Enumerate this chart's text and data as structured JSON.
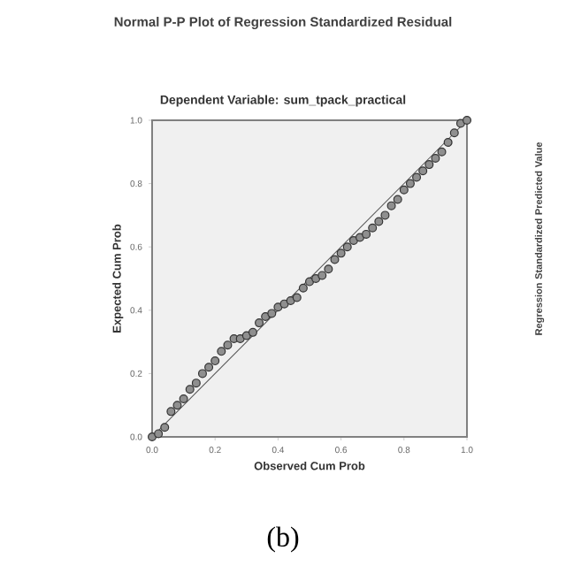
{
  "chart_data": {
    "type": "scatter",
    "title": "Normal P-P Plot of Regression Standardized Residual",
    "subtitle": "Dependent Variable: sum_tpack_practical",
    "xlabel": "Observed Cum Prob",
    "ylabel": "Expected Cum Prob",
    "xlim": [
      0,
      1
    ],
    "ylim": [
      0,
      1
    ],
    "xticks": [
      {
        "value": 0,
        "label": "0.0"
      },
      {
        "value": 0.2,
        "label": "0.2"
      },
      {
        "value": 0.4,
        "label": "0.4"
      },
      {
        "value": 0.6,
        "label": "0.6"
      },
      {
        "value": 0.8,
        "label": "0.8"
      },
      {
        "value": 1,
        "label": "1.0"
      }
    ],
    "yticks": [
      {
        "value": 0,
        "label": "0.0"
      },
      {
        "value": 0.2,
        "label": "0.2"
      },
      {
        "value": 0.4,
        "label": "0.4"
      },
      {
        "value": 0.6,
        "label": "0.6"
      },
      {
        "value": 0.8,
        "label": "0.8"
      },
      {
        "value": 1,
        "label": "1.0"
      }
    ],
    "marker": "circle",
    "series": [
      {
        "color": "#333333",
        "x": [
          0,
          0.02,
          0.04,
          0.06,
          0.08,
          0.1,
          0.12,
          0.14,
          0.16,
          0.18,
          0.2,
          0.22,
          0.24,
          0.26,
          0.28,
          0.3,
          0.32,
          0.34,
          0.36,
          0.38,
          0.4,
          0.42,
          0.44,
          0.46,
          0.48,
          0.5,
          0.52,
          0.54,
          0.56,
          0.58,
          0.6,
          0.62,
          0.64,
          0.66,
          0.68,
          0.7,
          0.72,
          0.74,
          0.76,
          0.78,
          0.8,
          0.82,
          0.84,
          0.86,
          0.88,
          0.9,
          0.92,
          0.94,
          0.96,
          0.98,
          1
        ],
        "values": [
          0,
          0.01,
          0.03,
          0.08,
          0.1,
          0.12,
          0.15,
          0.17,
          0.2,
          0.22,
          0.24,
          0.27,
          0.29,
          0.31,
          0.31,
          0.32,
          0.33,
          0.36,
          0.38,
          0.39,
          0.41,
          0.42,
          0.43,
          0.44,
          0.47,
          0.49,
          0.5,
          0.51,
          0.53,
          0.56,
          0.58,
          0.6,
          0.62,
          0.63,
          0.64,
          0.66,
          0.68,
          0.7,
          0.73,
          0.75,
          0.78,
          0.8,
          0.82,
          0.84,
          0.86,
          0.88,
          0.9,
          0.93,
          0.96,
          0.99,
          1
        ]
      },
      {
        "type": "line",
        "marker": "none",
        "color": "#555555",
        "x": [
          0,
          1
        ],
        "values": [
          0,
          1
        ]
      }
    ],
    "annotations": [
      "(b)",
      "Regression Standardized Predicted Value"
    ]
  }
}
